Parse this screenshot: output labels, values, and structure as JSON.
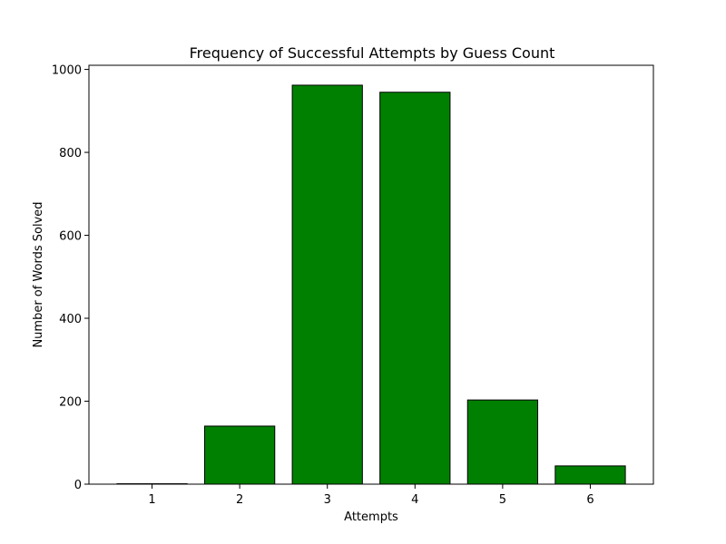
{
  "chart_data": {
    "type": "bar",
    "title": "Frequency of Successful Attempts by Guess Count",
    "xlabel": "Attempts",
    "ylabel": "Number of Words Solved",
    "categories": [
      "1",
      "2",
      "3",
      "4",
      "5",
      "6"
    ],
    "values": [
      1,
      140,
      962,
      945,
      203,
      44
    ],
    "ylim": [
      0,
      1010
    ],
    "yticks": [
      0,
      200,
      400,
      600,
      800,
      1000
    ],
    "grid": false,
    "bar_color": "#008000",
    "bar_edge_color": "#000000"
  }
}
